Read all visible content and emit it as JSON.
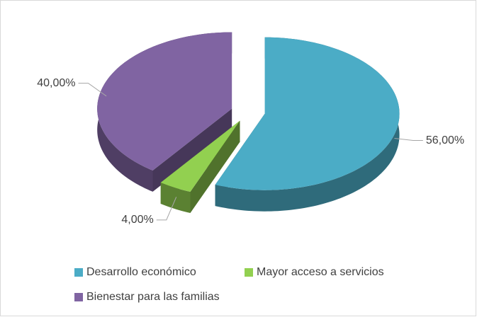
{
  "chart_data": {
    "type": "pie",
    "categories": [
      "Desarrollo económico",
      "Mayor acceso a servicios",
      "Bienestar para las familias"
    ],
    "values": [
      56,
      4,
      40
    ],
    "value_labels": [
      "56,00%",
      "4,00%",
      "40,00%"
    ],
    "colors": [
      "#4bacc6",
      "#92d050",
      "#8064a2"
    ],
    "legend": "bottom"
  }
}
